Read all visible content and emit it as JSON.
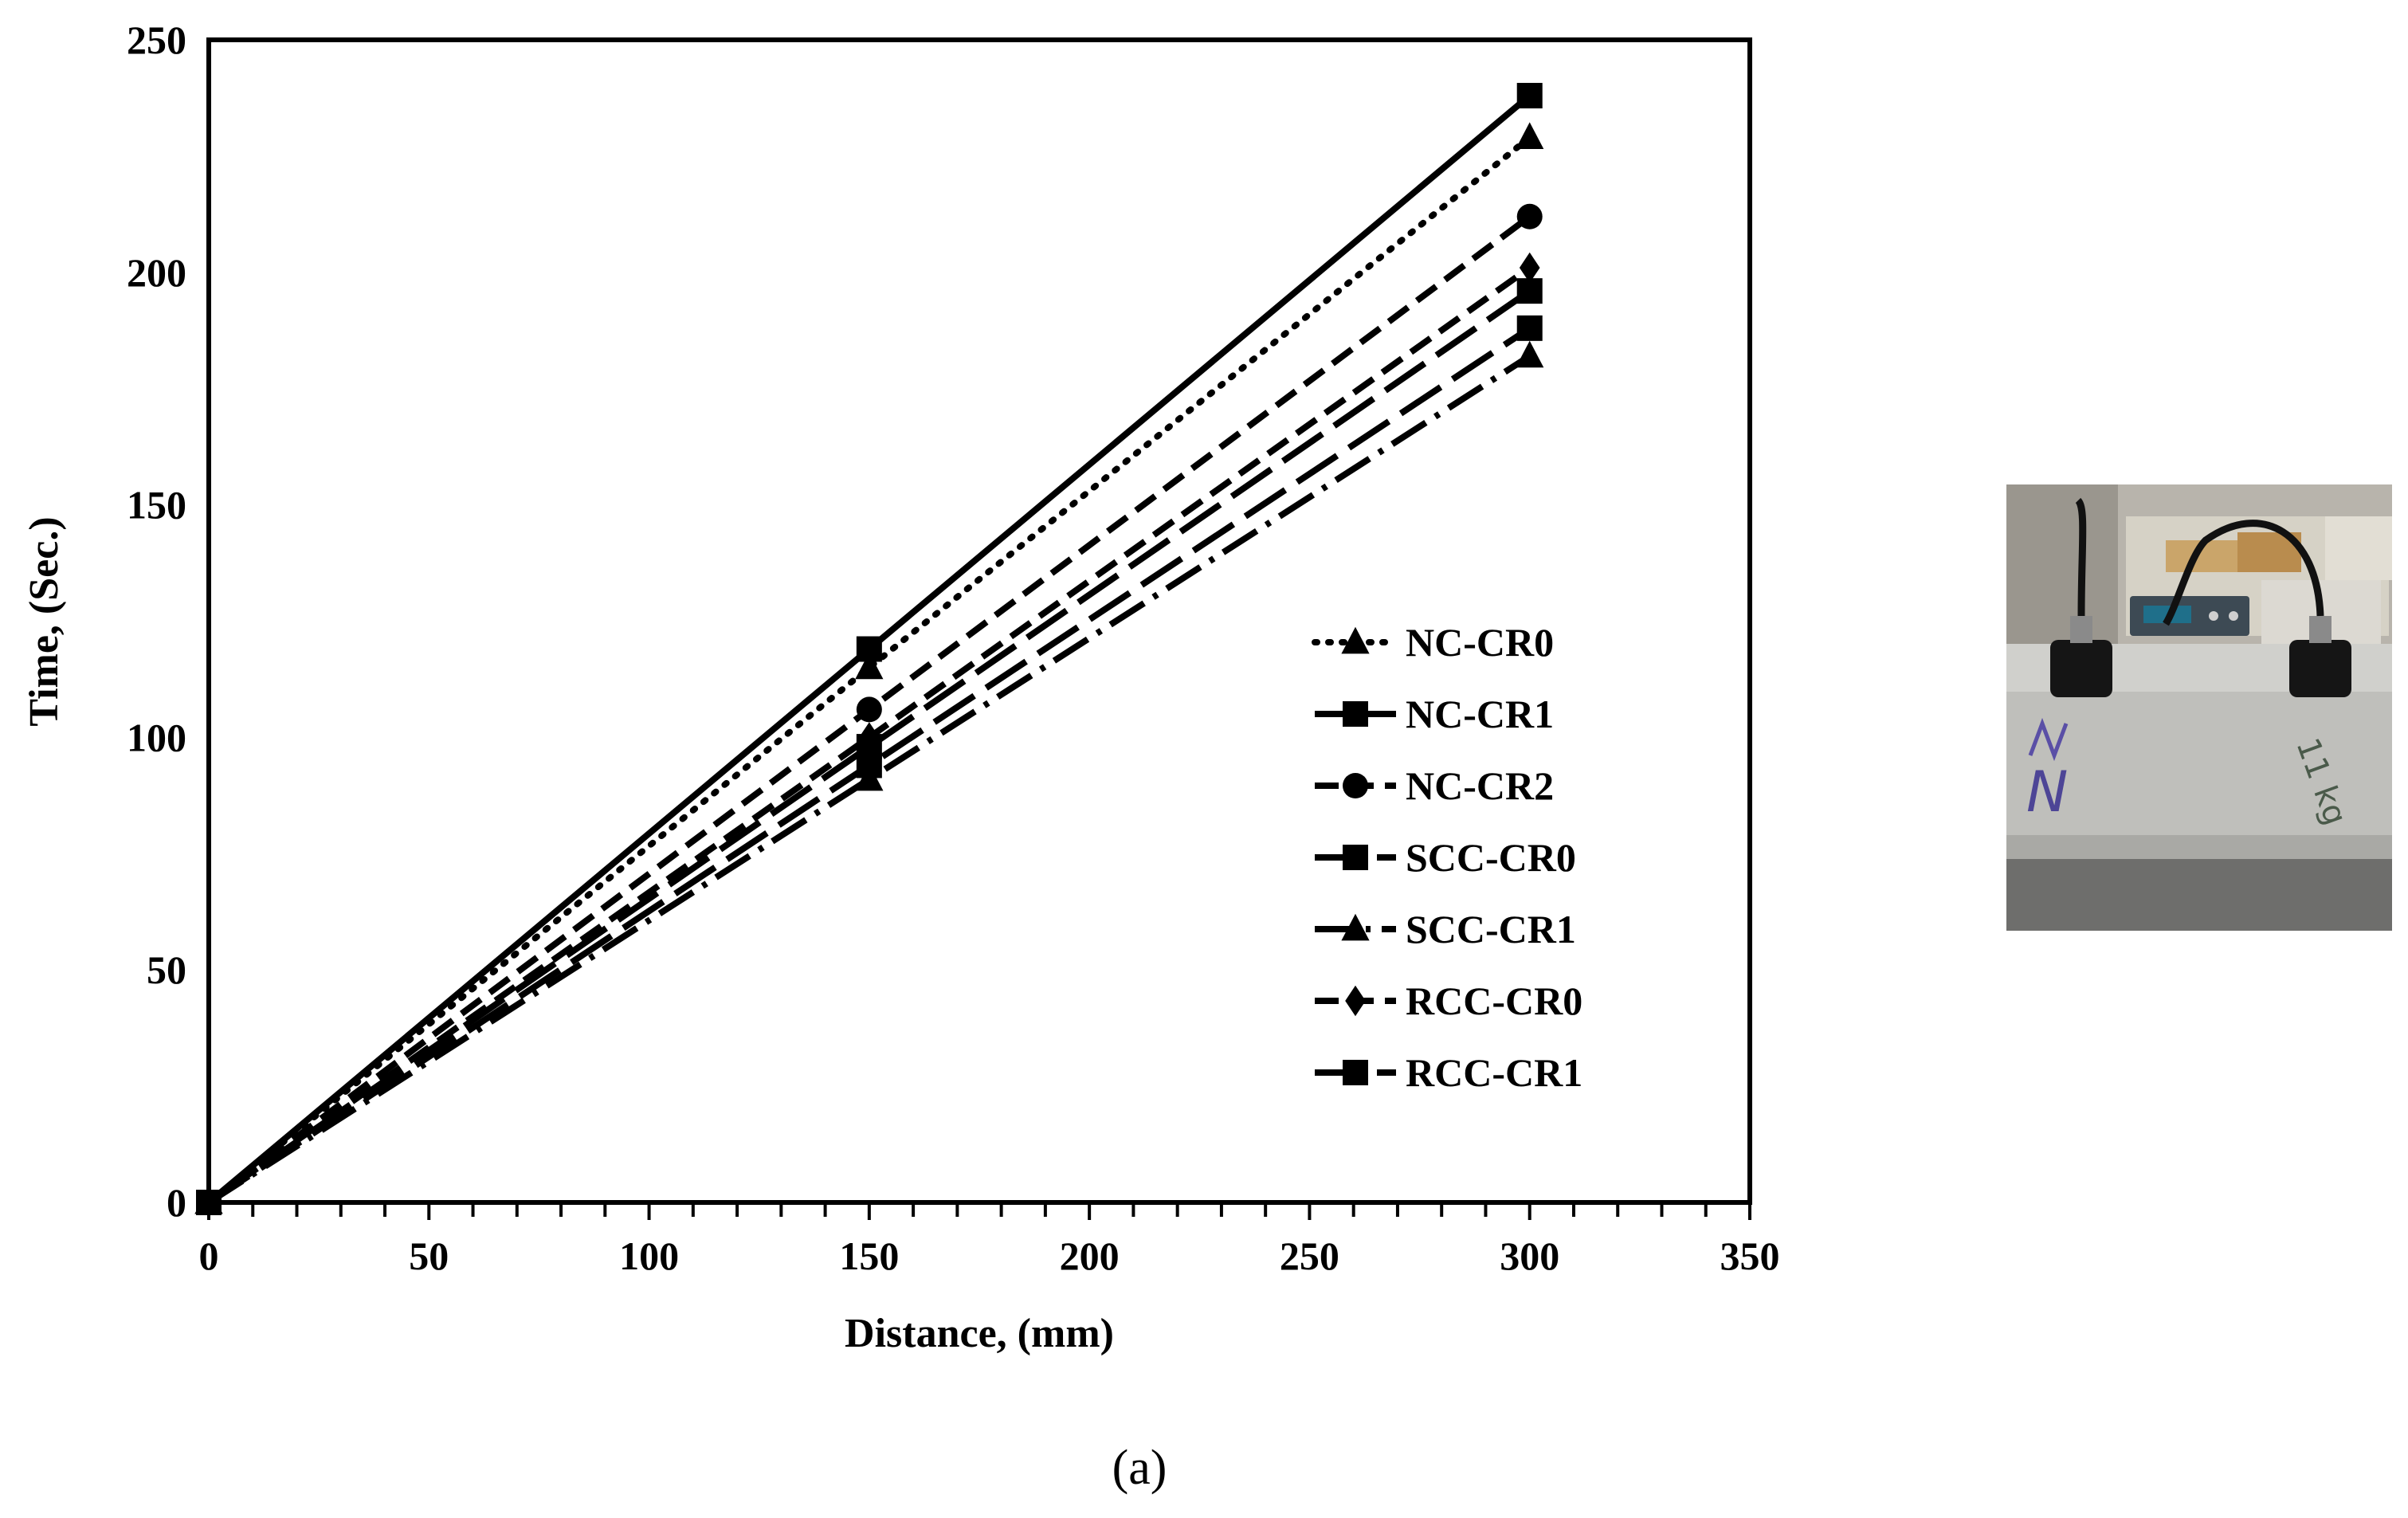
{
  "caption": "(a)",
  "photo": {
    "kind": "photo of two ultrasonic transducers on a concrete specimen",
    "handwriting_labels": [
      "N",
      "11 kg"
    ]
  },
  "chart_data": {
    "type": "line",
    "xlabel": "Distance, (mm)",
    "ylabel": "Time, (Sec.)",
    "xlim": [
      0,
      350
    ],
    "ylim": [
      0,
      250
    ],
    "xticks": [
      0,
      50,
      100,
      150,
      200,
      250,
      300,
      350
    ],
    "yticks": [
      0,
      50,
      100,
      150,
      200,
      250
    ],
    "x_minor_step": 10,
    "grid": false,
    "legend_position": "center-right",
    "line_color": "#000000",
    "x": [
      0,
      150,
      300
    ],
    "series": [
      {
        "name": "NC-CR0",
        "values": [
          0,
          115,
          229
        ],
        "marker": "triangle",
        "dash": "dotted"
      },
      {
        "name": "NC-CR1",
        "values": [
          0,
          119,
          238
        ],
        "marker": "square",
        "dash": "solid"
      },
      {
        "name": "NC-CR2",
        "values": [
          0,
          106,
          212
        ],
        "marker": "circle",
        "dash": "dashed"
      },
      {
        "name": "SCC-CR0",
        "values": [
          0,
          98,
          196
        ],
        "marker": "square",
        "dash": "longdash"
      },
      {
        "name": "SCC-CR1",
        "values": [
          0,
          91,
          182
        ],
        "marker": "triangle",
        "dash": "dashdot"
      },
      {
        "name": "RCC-CR0",
        "values": [
          0,
          100,
          201
        ],
        "marker": "diamond",
        "dash": "dashed"
      },
      {
        "name": "RCC-CR1",
        "values": [
          0,
          94,
          188
        ],
        "marker": "square",
        "dash": "longdash"
      }
    ]
  }
}
